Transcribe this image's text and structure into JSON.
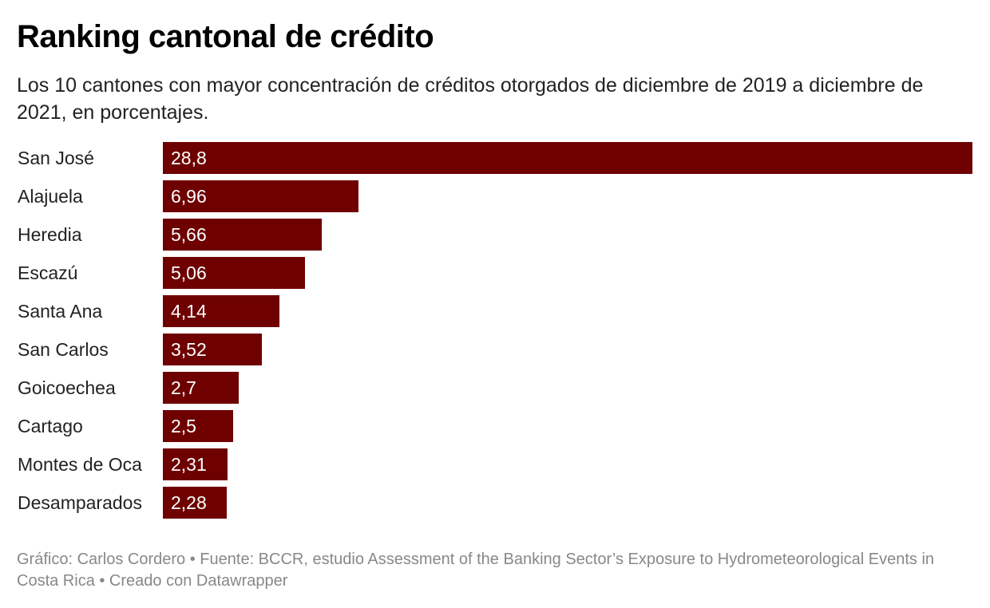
{
  "header": {
    "title": "Ranking cantonal de crédito",
    "subtitle": "Los 10 cantones con mayor concentración de créditos otorgados de diciembre de 2019 a diciembre de 2021, en porcentajes."
  },
  "colors": {
    "bar": "#6e0000",
    "value_text": "#ffffff"
  },
  "chart_data": {
    "type": "bar",
    "orientation": "horizontal",
    "categories": [
      "San José",
      "Alajuela",
      "Heredia",
      "Escazú",
      "Santa Ana",
      "San Carlos",
      "Goicoechea",
      "Cartago",
      "Montes de Oca",
      "Desamparados"
    ],
    "values": [
      28.8,
      6.96,
      5.66,
      5.06,
      4.14,
      3.52,
      2.7,
      2.5,
      2.31,
      2.28
    ],
    "value_labels": [
      "28,8",
      "6,96",
      "5,66",
      "5,06",
      "4,14",
      "3,52",
      "2,7",
      "2,5",
      "2,31",
      "2,28"
    ],
    "title": "Ranking cantonal de crédito",
    "xlabel": "",
    "ylabel": "",
    "xlim": [
      0,
      28.8
    ],
    "grid": false,
    "legend": "none"
  },
  "footer": {
    "text": "Gráfico: Carlos Cordero • Fuente: BCCR, estudio Assessment of the Banking Sector’s Exposure to Hydrometeorological Events in Costa Rica • Creado con Datawrapper"
  }
}
